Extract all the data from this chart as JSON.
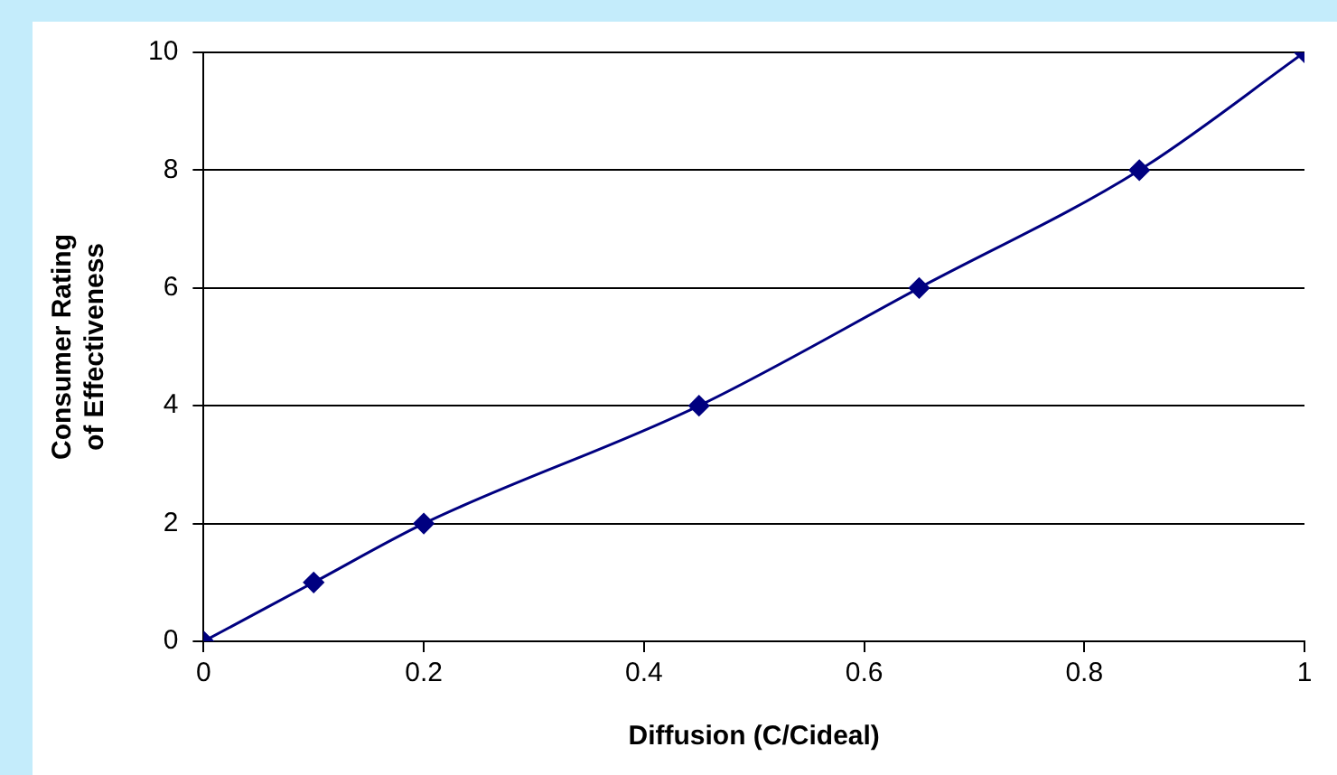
{
  "chart_data": {
    "type": "line",
    "xlabel": "Diffusion (C/Cideal)",
    "ylabel": "Consumer Rating of Effectiveness",
    "x": [
      0,
      0.1,
      0.2,
      0.45,
      0.65,
      0.85,
      1
    ],
    "series": [
      {
        "color": "#000080",
        "values": [
          0,
          1,
          2,
          4,
          6,
          8,
          10
        ]
      }
    ],
    "xlim": [
      0,
      1
    ],
    "xticks": [
      0,
      0.2,
      0.4,
      0.6,
      0.8,
      1
    ],
    "ylim": [
      0,
      10
    ],
    "yticks": [
      0,
      2,
      4,
      6,
      8,
      10
    ],
    "grid": "y",
    "legend": false,
    "marker": "diamond",
    "line_style": "solid"
  }
}
